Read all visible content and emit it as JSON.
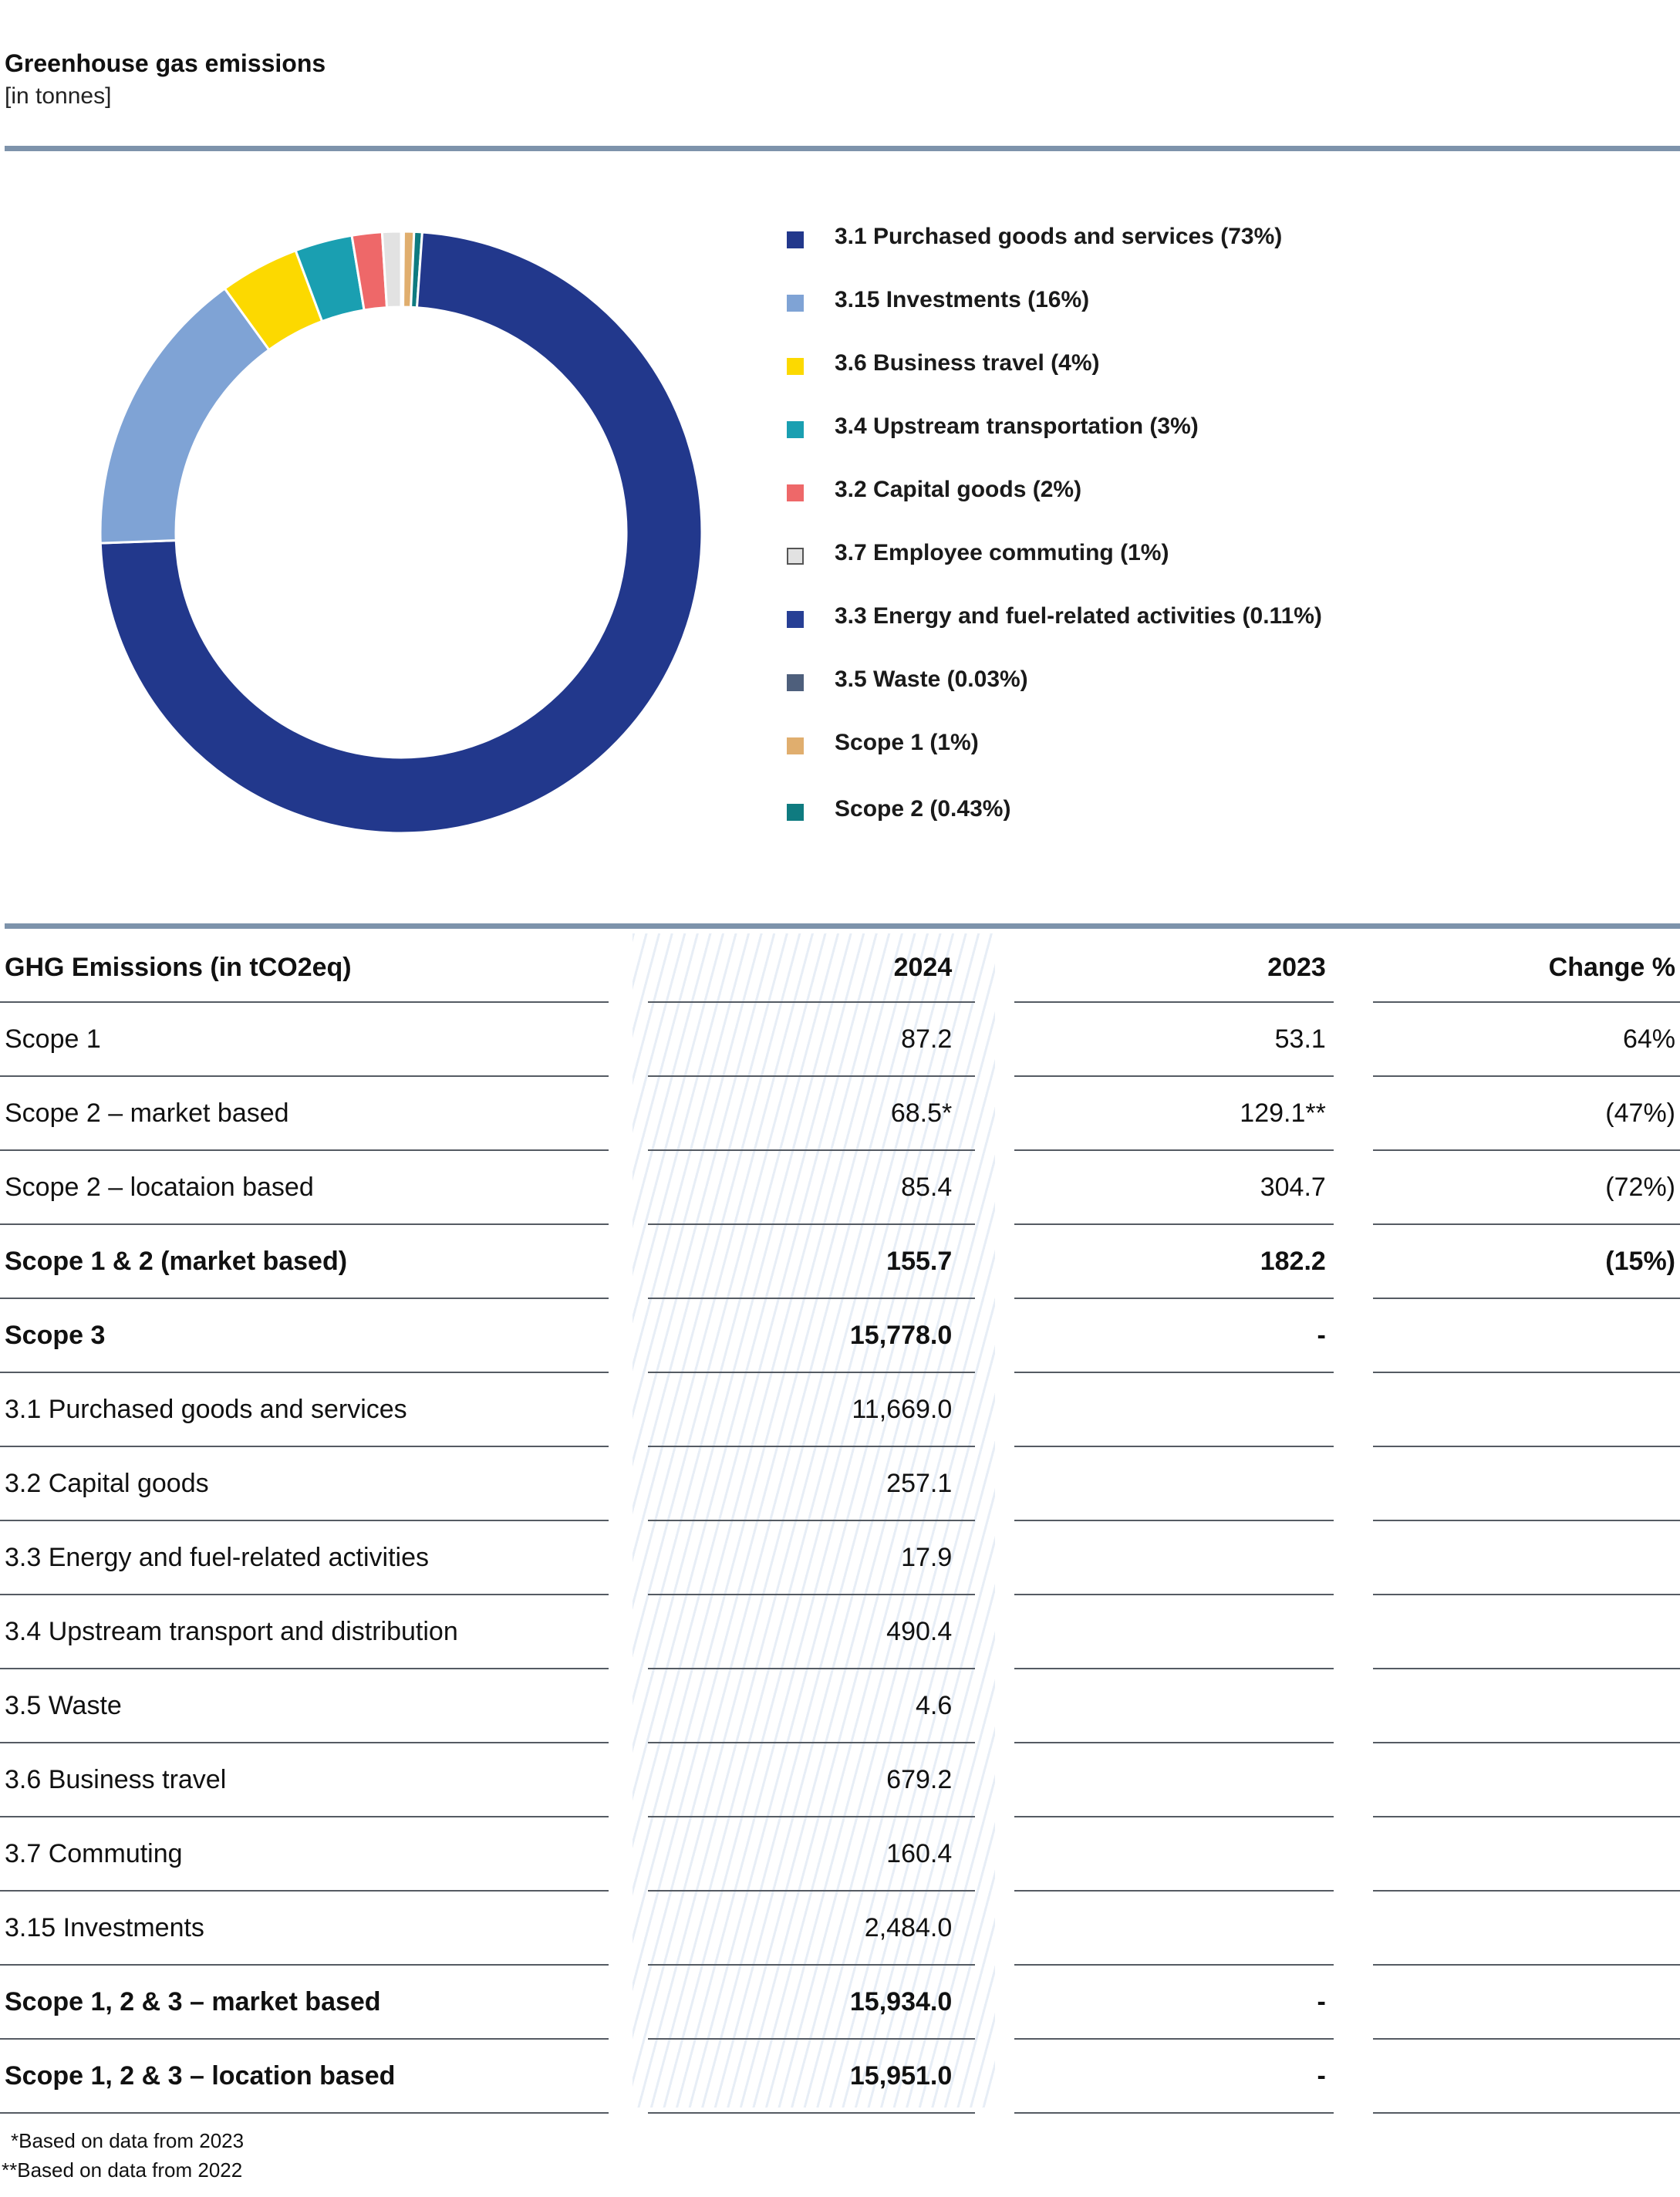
{
  "title": "Greenhouse gas emissions",
  "subtitle": "[in tonnes]",
  "chart_data": {
    "type": "pie",
    "donut": true,
    "legend_position": "right",
    "slices": [
      {
        "label": "3.1 Purchased goods and services (73%)",
        "value": 11669.0,
        "color": "#22388c"
      },
      {
        "label": "3.15 Investments (16%)",
        "value": 2484.0,
        "color": "#7fa3d5"
      },
      {
        "label": "3.6 Business travel (4%)",
        "value": 679.2,
        "color": "#fcd900"
      },
      {
        "label": "3.4 Upstream transportation (3%)",
        "value": 490.4,
        "color": "#1a9fb1"
      },
      {
        "label": "3.2 Capital goods (2%)",
        "value": 257.1,
        "color": "#ee6869"
      },
      {
        "label": "3.7 Employee commuting (1%)",
        "value": 160.4,
        "color": "#e2e2e2",
        "outline": "#555555"
      },
      {
        "label": "3.3 Energy and fuel-related activities (0.11%)",
        "value": 17.9,
        "color": "#273f95"
      },
      {
        "label": "3.5 Waste (0.03%)",
        "value": 4.6,
        "color": "#4e5f7c"
      },
      {
        "label": "Scope 1 (1%)",
        "value": 87.2,
        "color": "#e0ae6e"
      },
      {
        "label": "Scope 2 (0.43%)",
        "value": 68.5,
        "color": "#0f7b80"
      }
    ],
    "start_order": [
      6,
      7,
      8,
      9,
      0,
      1,
      2,
      3,
      4,
      5
    ]
  },
  "table": {
    "headers": [
      "GHG Emissions (in tCO2eq)",
      "2024",
      "2023",
      "Change %"
    ],
    "rows": [
      {
        "cells": [
          "Scope 1",
          "87.2",
          "53.1",
          "64%"
        ],
        "bold": false
      },
      {
        "cells": [
          "Scope 2 – market based",
          "68.5*",
          "129.1**",
          "(47%)"
        ],
        "bold": false
      },
      {
        "cells": [
          "Scope 2 – locataion based",
          "85.4",
          "304.7",
          "(72%)"
        ],
        "bold": false
      },
      {
        "cells": [
          "Scope 1 & 2 (market based)",
          "155.7",
          "182.2",
          "(15%)"
        ],
        "bold": true
      },
      {
        "cells": [
          "Scope 3",
          "15,778.0",
          "-",
          ""
        ],
        "bold": true
      },
      {
        "cells": [
          "3.1 Purchased goods and services",
          "11,669.0",
          "",
          ""
        ],
        "bold": false
      },
      {
        "cells": [
          "3.2 Capital goods",
          "257.1",
          "",
          ""
        ],
        "bold": false
      },
      {
        "cells": [
          "3.3 Energy and fuel-related activities",
          "17.9",
          "",
          ""
        ],
        "bold": false
      },
      {
        "cells": [
          "3.4 Upstream transport and distribution",
          "490.4",
          "",
          ""
        ],
        "bold": false
      },
      {
        "cells": [
          "3.5 Waste",
          "4.6",
          "",
          ""
        ],
        "bold": false
      },
      {
        "cells": [
          "3.6 Business travel",
          "679.2",
          "",
          ""
        ],
        "bold": false
      },
      {
        "cells": [
          "3.7 Commuting",
          "160.4",
          "",
          ""
        ],
        "bold": false
      },
      {
        "cells": [
          "3.15 Investments",
          "2,484.0",
          "",
          ""
        ],
        "bold": false
      },
      {
        "cells": [
          "Scope 1, 2 & 3 – market based",
          "15,934.0",
          "-",
          ""
        ],
        "bold": true
      },
      {
        "cells": [
          "Scope 1, 2 & 3 – location based",
          "15,951.0",
          "-",
          ""
        ],
        "bold": true
      }
    ]
  },
  "footnotes": [
    "*Based on data from 2023",
    "**Based on data from 2022"
  ]
}
